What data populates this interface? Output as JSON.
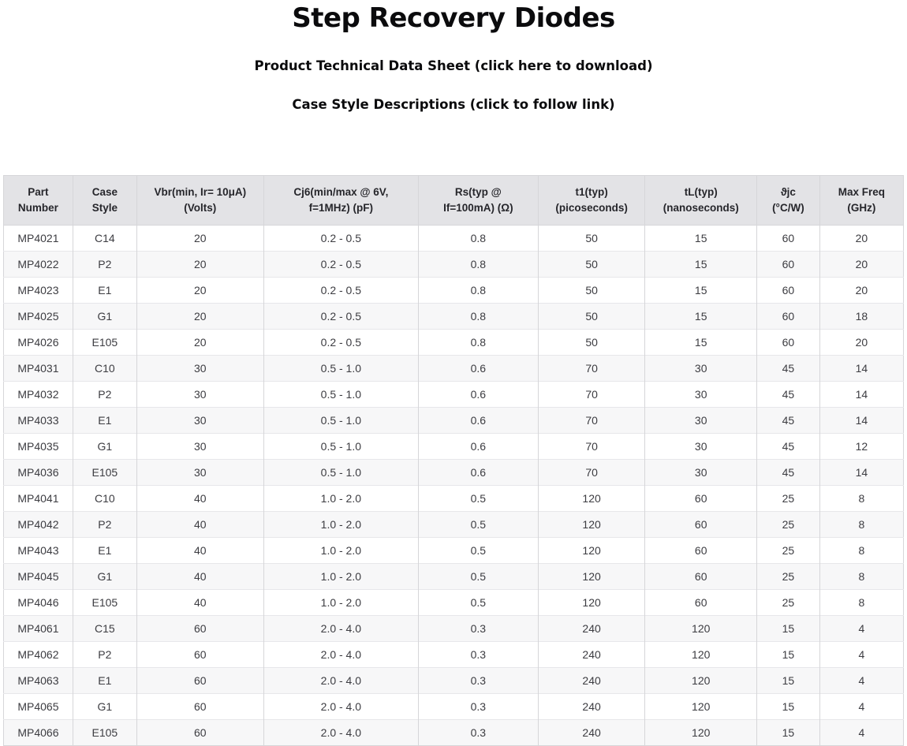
{
  "header": {
    "title": "Step Recovery Diodes",
    "datasheet_link": "Product Technical Data Sheet (click here to download)",
    "case_style_link": "Case Style Descriptions (click to follow link)"
  },
  "table": {
    "columns": [
      {
        "id": "part-number",
        "lines": [
          "Part",
          "Number"
        ]
      },
      {
        "id": "case-style",
        "lines": [
          "Case",
          "Style"
        ]
      },
      {
        "id": "vbr",
        "lines": [
          "Vbr(min, Ir= 10μA)",
          "(Volts)"
        ]
      },
      {
        "id": "cj6",
        "lines": [
          "Cj6(min/max @ 6V,",
          "f=1MHz) (pF)"
        ]
      },
      {
        "id": "rs",
        "lines": [
          "Rs(typ @",
          "If=100mA) (Ω)"
        ]
      },
      {
        "id": "t1",
        "lines": [
          "t1(typ)",
          "(picoseconds)"
        ]
      },
      {
        "id": "tl",
        "lines": [
          "tL(typ)",
          "(nanoseconds)"
        ]
      },
      {
        "id": "theta-jc",
        "lines": [
          "ϑjc",
          "(°C/W)"
        ]
      },
      {
        "id": "max-freq",
        "lines": [
          "Max Freq",
          "(GHz)"
        ]
      }
    ],
    "rows": [
      [
        "MP4021",
        "C14",
        "20",
        "0.2 - 0.5",
        "0.8",
        "50",
        "15",
        "60",
        "20"
      ],
      [
        "MP4022",
        "P2",
        "20",
        "0.2 - 0.5",
        "0.8",
        "50",
        "15",
        "60",
        "20"
      ],
      [
        "MP4023",
        "E1",
        "20",
        "0.2 - 0.5",
        "0.8",
        "50",
        "15",
        "60",
        "20"
      ],
      [
        "MP4025",
        "G1",
        "20",
        "0.2 - 0.5",
        "0.8",
        "50",
        "15",
        "60",
        "18"
      ],
      [
        "MP4026",
        "E105",
        "20",
        "0.2 - 0.5",
        "0.8",
        "50",
        "15",
        "60",
        "20"
      ],
      [
        "MP4031",
        "C10",
        "30",
        "0.5 - 1.0",
        "0.6",
        "70",
        "30",
        "45",
        "14"
      ],
      [
        "MP4032",
        "P2",
        "30",
        "0.5 - 1.0",
        "0.6",
        "70",
        "30",
        "45",
        "14"
      ],
      [
        "MP4033",
        "E1",
        "30",
        "0.5 - 1.0",
        "0.6",
        "70",
        "30",
        "45",
        "14"
      ],
      [
        "MP4035",
        "G1",
        "30",
        "0.5 - 1.0",
        "0.6",
        "70",
        "30",
        "45",
        "12"
      ],
      [
        "MP4036",
        "E105",
        "30",
        "0.5 - 1.0",
        "0.6",
        "70",
        "30",
        "45",
        "14"
      ],
      [
        "MP4041",
        "C10",
        "40",
        "1.0 - 2.0",
        "0.5",
        "120",
        "60",
        "25",
        "8"
      ],
      [
        "MP4042",
        "P2",
        "40",
        "1.0 - 2.0",
        "0.5",
        "120",
        "60",
        "25",
        "8"
      ],
      [
        "MP4043",
        "E1",
        "40",
        "1.0 - 2.0",
        "0.5",
        "120",
        "60",
        "25",
        "8"
      ],
      [
        "MP4045",
        "G1",
        "40",
        "1.0 - 2.0",
        "0.5",
        "120",
        "60",
        "25",
        "8"
      ],
      [
        "MP4046",
        "E105",
        "40",
        "1.0 - 2.0",
        "0.5",
        "120",
        "60",
        "25",
        "8"
      ],
      [
        "MP4061",
        "C15",
        "60",
        "2.0 - 4.0",
        "0.3",
        "240",
        "120",
        "15",
        "4"
      ],
      [
        "MP4062",
        "P2",
        "60",
        "2.0 - 4.0",
        "0.3",
        "240",
        "120",
        "15",
        "4"
      ],
      [
        "MP4063",
        "E1",
        "60",
        "2.0 - 4.0",
        "0.3",
        "240",
        "120",
        "15",
        "4"
      ],
      [
        "MP4065",
        "G1",
        "60",
        "2.0 - 4.0",
        "0.3",
        "240",
        "120",
        "15",
        "4"
      ],
      [
        "MP4066",
        "E105",
        "60",
        "2.0 - 4.0",
        "0.3",
        "240",
        "120",
        "15",
        "4"
      ]
    ]
  },
  "colors": {
    "header_bg": "#e3e3e6",
    "row_alt_bg": "#f7f7f8",
    "border_column": "#d6d6d9",
    "border_row": "#e7e7ea",
    "header_text": "#26262b",
    "cell_text": "#3c3c41",
    "title_text": "#0b0b0d"
  }
}
